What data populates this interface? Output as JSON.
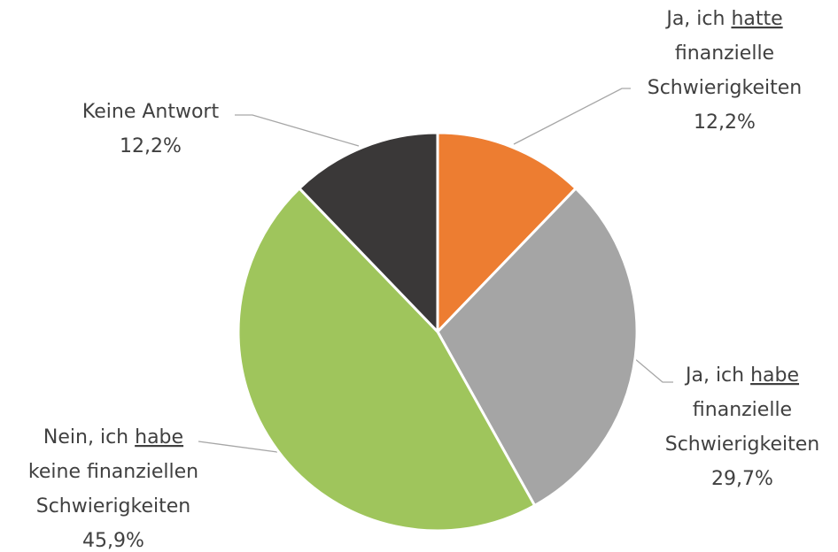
{
  "chart_data": {
    "type": "pie",
    "categories": [
      "Ja, ich hatte finanzielle Schwierigkeiten",
      "Ja, ich habe finanzielle Schwierigkeiten",
      "Nein, ich habe keine finanziellen Schwierigkeiten",
      "Keine Antwort"
    ],
    "values": [
      12.2,
      29.7,
      45.9,
      12.2
    ],
    "value_labels": [
      "12,2%",
      "29,7%",
      "45,9%",
      "12,2%"
    ],
    "colors": [
      "#ed7d31",
      "#a5a5a5",
      "#9fc55c",
      "#3a3838"
    ]
  }
}
